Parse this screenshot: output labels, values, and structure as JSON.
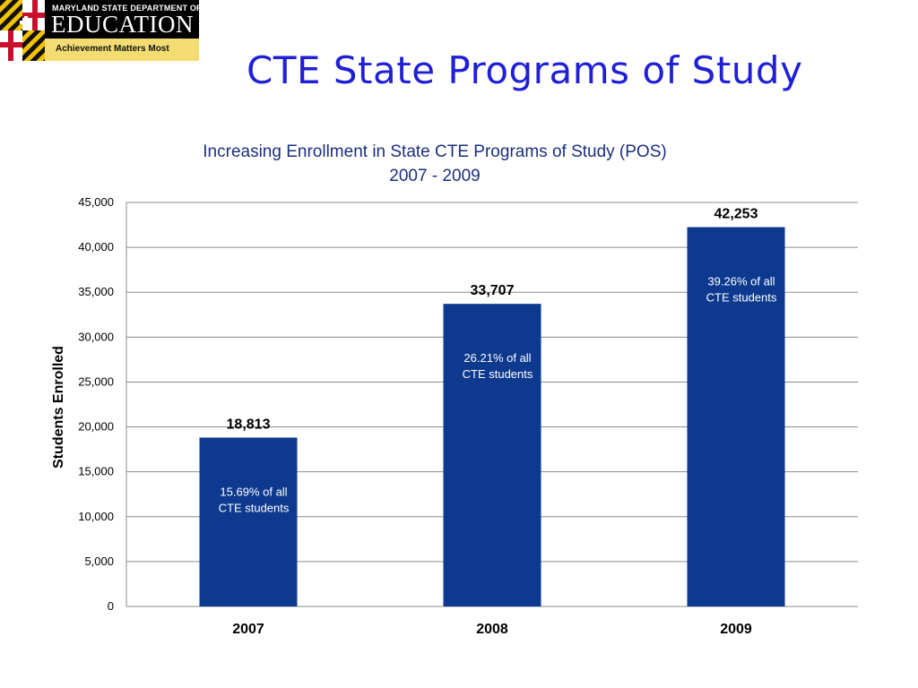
{
  "logo": {
    "line1": "MARYLAND STATE DEPARTMENT OF",
    "line2": "EDUCATION",
    "tagline": "Achievement Matters Most"
  },
  "slide_title": "CTE State Programs of Study",
  "colors": {
    "bar": "#0d3a8f",
    "title": "#1f1fd6",
    "chart_title": "#1b2f7c"
  },
  "chart_data": {
    "type": "bar",
    "title": "Increasing Enrollment in State CTE Programs of Study (POS)",
    "subtitle": "2007 - 2009",
    "xlabel": "",
    "ylabel": "Students Enrolled",
    "categories": [
      "2007",
      "2008",
      "2009"
    ],
    "values": [
      18813,
      33707,
      42253
    ],
    "value_labels": [
      "18,813",
      "33,707",
      "42,253"
    ],
    "bar_annotations": [
      [
        "15.69%  of  all",
        "CTE students"
      ],
      [
        "26.21%  of all",
        "CTE students"
      ],
      [
        "39.26%  of  all",
        "CTE students"
      ]
    ],
    "ylim": [
      0,
      45000
    ],
    "yticks": [
      0,
      5000,
      10000,
      15000,
      20000,
      25000,
      30000,
      35000,
      40000,
      45000
    ],
    "ytick_labels": [
      "0",
      "5,000",
      "10,000",
      "15,000",
      "20,000",
      "25,000",
      "30,000",
      "35,000",
      "40,000",
      "45,000"
    ],
    "grid": true,
    "legend": "none"
  }
}
